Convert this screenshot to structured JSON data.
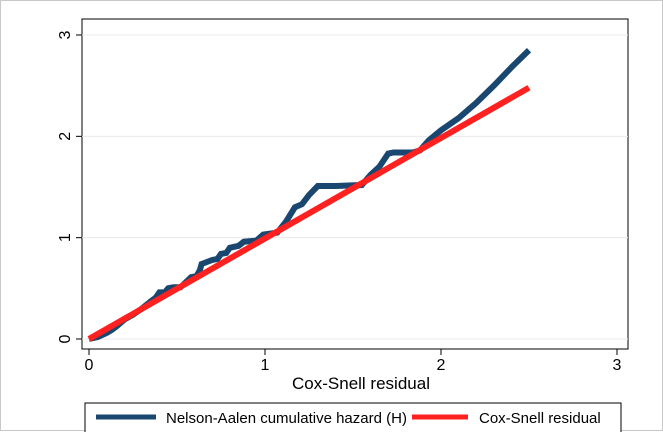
{
  "chart_data": {
    "type": "line",
    "title": "",
    "xlabel": "Cox-Snell residual",
    "ylabel": "",
    "xlim": [
      0,
      3
    ],
    "ylim": [
      0,
      3
    ],
    "xticks": [
      "0",
      "1",
      "2",
      "3"
    ],
    "yticks": [
      "0",
      "1",
      "2",
      "3"
    ],
    "grid": "horizontal",
    "legend_position": "bottom",
    "series": [
      {
        "name": "Nelson-Aalen cumulative hazard (H)",
        "color": "#1a476f",
        "points": [
          [
            0.0,
            0.0
          ],
          [
            0.05,
            0.02
          ],
          [
            0.1,
            0.06
          ],
          [
            0.13,
            0.09
          ],
          [
            0.16,
            0.13
          ],
          [
            0.2,
            0.19
          ],
          [
            0.25,
            0.24
          ],
          [
            0.3,
            0.3
          ],
          [
            0.35,
            0.37
          ],
          [
            0.38,
            0.41
          ],
          [
            0.4,
            0.46
          ],
          [
            0.43,
            0.46
          ],
          [
            0.45,
            0.5
          ],
          [
            0.48,
            0.51
          ],
          [
            0.52,
            0.51
          ],
          [
            0.55,
            0.56
          ],
          [
            0.58,
            0.61
          ],
          [
            0.61,
            0.62
          ],
          [
            0.63,
            0.68
          ],
          [
            0.64,
            0.74
          ],
          [
            0.67,
            0.76
          ],
          [
            0.7,
            0.78
          ],
          [
            0.73,
            0.79
          ],
          [
            0.75,
            0.84
          ],
          [
            0.78,
            0.85
          ],
          [
            0.8,
            0.9
          ],
          [
            0.85,
            0.92
          ],
          [
            0.88,
            0.96
          ],
          [
            0.95,
            0.97
          ],
          [
            0.99,
            1.03
          ],
          [
            1.03,
            1.04
          ],
          [
            1.07,
            1.05
          ],
          [
            1.12,
            1.16
          ],
          [
            1.17,
            1.3
          ],
          [
            1.21,
            1.33
          ],
          [
            1.25,
            1.42
          ],
          [
            1.3,
            1.51
          ],
          [
            1.4,
            1.51
          ],
          [
            1.55,
            1.52
          ],
          [
            1.6,
            1.62
          ],
          [
            1.65,
            1.7
          ],
          [
            1.7,
            1.83
          ],
          [
            1.73,
            1.84
          ],
          [
            1.84,
            1.84
          ],
          [
            1.88,
            1.86
          ],
          [
            1.93,
            1.96
          ],
          [
            2.0,
            2.06
          ],
          [
            2.1,
            2.18
          ],
          [
            2.2,
            2.33
          ],
          [
            2.3,
            2.5
          ],
          [
            2.4,
            2.68
          ],
          [
            2.5,
            2.85
          ]
        ]
      },
      {
        "name": "Cox-Snell residual",
        "color": "#ff2020",
        "points": [
          [
            0.0,
            0.0
          ],
          [
            2.5,
            2.48
          ]
        ]
      }
    ]
  }
}
